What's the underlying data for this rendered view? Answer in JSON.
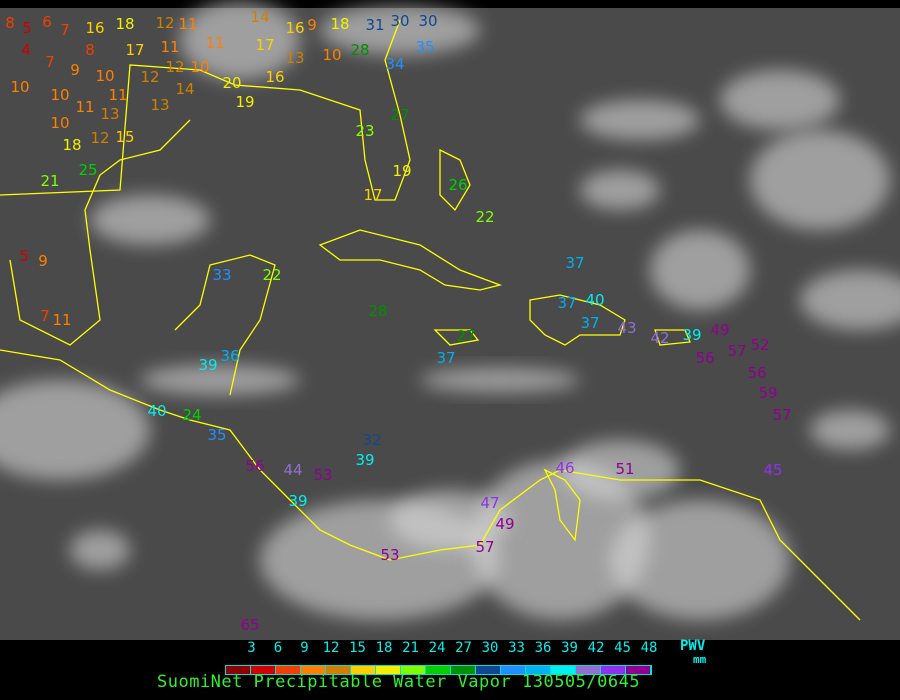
{
  "title": "SuomiNet Precipitable Water Vapor 130505/0645",
  "legend": {
    "unit_name": "PWV",
    "unit": "mm",
    "ticks": [
      "3",
      "6",
      "9",
      "12",
      "15",
      "18",
      "21",
      "24",
      "27",
      "30",
      "33",
      "36",
      "39",
      "42",
      "45",
      "48"
    ],
    "colors": [
      "#8b0000",
      "#d00000",
      "#f04000",
      "#ff8000",
      "#d08000",
      "#ffd000",
      "#f0f000",
      "#80ff00",
      "#00d000",
      "#009000",
      "#104890",
      "#2090ff",
      "#00b0f0",
      "#00f0f0",
      "#9070d0",
      "#9030f0",
      "#900090"
    ]
  },
  "coastline_color": "#ffff00",
  "stations": [
    "8",
    "5",
    "6",
    "7",
    "16",
    "18",
    "12",
    "11",
    "4",
    "8",
    "7",
    "9",
    "10",
    "10",
    "10",
    "11",
    "12",
    "11",
    "17",
    "11",
    "12",
    "10",
    "14",
    "10",
    "11",
    "12",
    "18",
    "13",
    "15",
    "21",
    "25",
    "13",
    "17",
    "14",
    "16",
    "13",
    "9",
    "10",
    "18",
    "16",
    "20",
    "19",
    "28",
    "31",
    "30",
    "34",
    "35",
    "30",
    "27",
    "23",
    "19",
    "17",
    "33",
    "22",
    "26",
    "22",
    "37",
    "28",
    "27",
    "37",
    "40",
    "37",
    "37",
    "43",
    "42",
    "39",
    "49",
    "56",
    "57",
    "52",
    "56",
    "59",
    "57",
    "45",
    "39",
    "36",
    "40",
    "24",
    "35",
    "56",
    "44",
    "53",
    "39",
    "32",
    "39",
    "46",
    "51",
    "47",
    "57",
    "49",
    "53",
    "65",
    "5",
    "9",
    "7",
    "11"
  ]
}
